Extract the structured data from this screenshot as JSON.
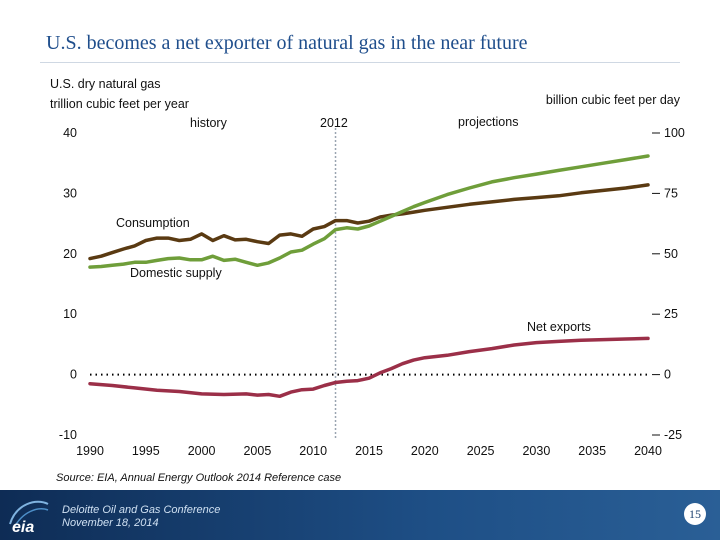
{
  "slide": {
    "title": "U.S. becomes a net exporter of natural gas in the near future",
    "unit_left_1": "U.S. dry natural gas",
    "unit_left_2": "trillion cubic feet per year",
    "unit_right": "billion cubic feet per day",
    "source": "Source:  EIA, Annual Energy Outlook 2014 Reference case",
    "footer_line1": "Deloitte Oil and Gas Conference",
    "footer_line2": "November 18, 2014",
    "page_number": "15",
    "logo_text": "eia"
  },
  "colors": {
    "consumption": "#5a3a12",
    "domestic_supply": "#6f9e3a",
    "net_exports": "#9b2f48",
    "divider": "#9aa5b1",
    "footer": "#1a3f6e"
  },
  "chart_data": {
    "type": "line",
    "title": "U.S. becomes a net exporter of natural gas in the near future",
    "xlabel": "",
    "ylabel": "trillion cubic feet per year",
    "y2label": "billion cubic feet per day",
    "xlim": [
      1990,
      2040
    ],
    "ylim": [
      -10,
      40
    ],
    "y2lim": [
      -25,
      100
    ],
    "x_ticks": [
      "1990",
      "1995",
      "2000",
      "2005",
      "2010",
      "2015",
      "2020",
      "2025",
      "2030",
      "2035",
      "2040"
    ],
    "y_ticks": [
      "-10",
      "0",
      "10",
      "20",
      "30",
      "40"
    ],
    "y2_ticks": [
      "-25",
      "0",
      "25",
      "50",
      "75",
      "100"
    ],
    "divider_year": 2012,
    "annotations": {
      "history": "history",
      "projections": "projections",
      "divider_label": "2012"
    },
    "series": [
      {
        "name": "Consumption",
        "color_key": "consumption",
        "x": [
          1990,
          1991,
          1992,
          1993,
          1994,
          1995,
          1996,
          1997,
          1998,
          1999,
          2000,
          2001,
          2002,
          2003,
          2004,
          2005,
          2006,
          2007,
          2008,
          2009,
          2010,
          2011,
          2012,
          2013,
          2014,
          2015,
          2016,
          2017,
          2018,
          2019,
          2020,
          2022,
          2024,
          2026,
          2028,
          2030,
          2032,
          2034,
          2036,
          2038,
          2040
        ],
        "values": [
          19.2,
          19.6,
          20.2,
          20.8,
          21.3,
          22.2,
          22.6,
          22.6,
          22.2,
          22.4,
          23.3,
          22.2,
          23.0,
          22.3,
          22.4,
          22.0,
          21.7,
          23.1,
          23.3,
          22.9,
          24.1,
          24.5,
          25.5,
          25.5,
          25.1,
          25.4,
          26.1,
          26.4,
          26.6,
          26.9,
          27.2,
          27.7,
          28.2,
          28.6,
          29.0,
          29.3,
          29.6,
          30.1,
          30.5,
          30.9,
          31.4
        ]
      },
      {
        "name": "Domestic supply",
        "color_key": "domestic_supply",
        "x": [
          1990,
          1991,
          1992,
          1993,
          1994,
          1995,
          1996,
          1997,
          1998,
          1999,
          2000,
          2001,
          2002,
          2003,
          2004,
          2005,
          2006,
          2007,
          2008,
          2009,
          2010,
          2011,
          2012,
          2013,
          2014,
          2015,
          2016,
          2017,
          2018,
          2019,
          2020,
          2022,
          2024,
          2026,
          2028,
          2030,
          2032,
          2034,
          2036,
          2038,
          2040
        ],
        "values": [
          17.8,
          17.9,
          18.1,
          18.3,
          18.6,
          18.6,
          18.9,
          19.2,
          19.3,
          19.0,
          19.0,
          19.6,
          18.9,
          19.1,
          18.6,
          18.1,
          18.5,
          19.3,
          20.3,
          20.6,
          21.6,
          22.5,
          24.0,
          24.3,
          24.1,
          24.6,
          25.4,
          26.2,
          27.0,
          27.8,
          28.5,
          29.8,
          30.9,
          31.9,
          32.6,
          33.2,
          33.8,
          34.4,
          35.0,
          35.6,
          36.2
        ]
      },
      {
        "name": "Net exports",
        "color_key": "net_exports",
        "x": [
          1990,
          1992,
          1994,
          1996,
          1998,
          2000,
          2002,
          2004,
          2005,
          2006,
          2007,
          2008,
          2009,
          2010,
          2011,
          2012,
          2013,
          2014,
          2015,
          2016,
          2017,
          2018,
          2019,
          2020,
          2022,
          2024,
          2026,
          2028,
          2030,
          2032,
          2034,
          2036,
          2038,
          2040
        ],
        "values": [
          -1.5,
          -1.8,
          -2.2,
          -2.6,
          -2.8,
          -3.2,
          -3.3,
          -3.2,
          -3.4,
          -3.3,
          -3.6,
          -2.9,
          -2.5,
          -2.4,
          -1.8,
          -1.3,
          -1.1,
          -1.0,
          -0.6,
          0.3,
          1.0,
          1.8,
          2.4,
          2.8,
          3.2,
          3.8,
          4.3,
          4.9,
          5.3,
          5.5,
          5.7,
          5.8,
          5.9,
          6.0
        ]
      }
    ]
  }
}
